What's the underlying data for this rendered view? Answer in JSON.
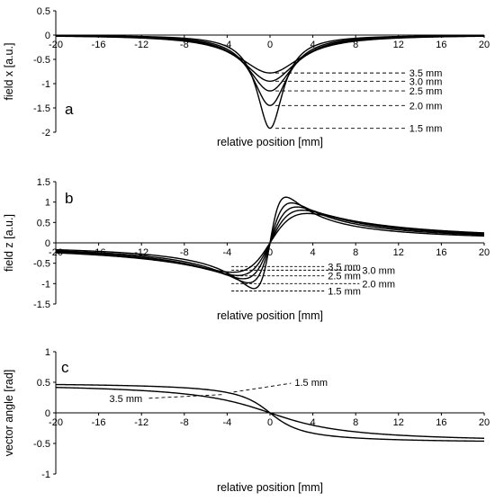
{
  "chart_data": [
    {
      "panel": "a",
      "type": "line",
      "xlabel": "relative position [mm]",
      "ylabel": "field x [a.u.]",
      "xlim": [
        -20,
        20
      ],
      "ylim": [
        -2,
        0.5
      ],
      "xticks": [
        -20,
        -16,
        -12,
        -8,
        -4,
        0,
        4,
        8,
        12,
        16,
        20
      ],
      "yticks": [
        0.5,
        0,
        -0.5,
        -1,
        -1.5,
        -2
      ],
      "series": [
        {
          "name": "3.5 mm",
          "peak": -0.78,
          "d": 3.5
        },
        {
          "name": "3.0 mm",
          "peak": -0.95,
          "d": 3.0
        },
        {
          "name": "2.5 mm",
          "peak": -1.15,
          "d": 2.5
        },
        {
          "name": "2.0 mm",
          "peak": -1.45,
          "d": 2.0
        },
        {
          "name": "1.5 mm",
          "peak": -1.92,
          "d": 1.5
        }
      ],
      "annotations": [
        {
          "text": "3.5 mm",
          "x": 13.0,
          "y": -0.78
        },
        {
          "text": "3.0 mm",
          "x": 13.0,
          "y": -0.95
        },
        {
          "text": "2.5 mm",
          "x": 13.0,
          "y": -1.15
        },
        {
          "text": "2.0 mm",
          "x": 13.0,
          "y": -1.45
        },
        {
          "text": "1.5 mm",
          "x": 13.0,
          "y": -1.92
        }
      ]
    },
    {
      "panel": "b",
      "type": "line",
      "xlabel": "relative position [mm]",
      "ylabel": "field z [a.u.]",
      "xlim": [
        -20,
        20
      ],
      "ylim": [
        -1.5,
        1.5
      ],
      "xticks": [
        -20,
        -16,
        -12,
        -8,
        -4,
        0,
        4,
        8,
        12,
        16,
        20
      ],
      "yticks": [
        1.5,
        1,
        0.5,
        0,
        -0.5,
        -1,
        -1.5
      ],
      "series": [
        {
          "name": "3.5 mm",
          "peak": 0.72,
          "d": 3.5
        },
        {
          "name": "3.0 mm",
          "peak": 0.8,
          "d": 3.0
        },
        {
          "name": "2.5 mm",
          "peak": 0.88,
          "d": 2.5
        },
        {
          "name": "2.0 mm",
          "peak": 0.98,
          "d": 2.0
        },
        {
          "name": "1.5 mm",
          "peak": 1.12,
          "d": 1.5
        }
      ],
      "annotations": [
        {
          "text": "3.5 mm",
          "x": 5.4,
          "y": -0.58
        },
        {
          "text": "3.0 mm",
          "x": 8.6,
          "y": -0.67
        },
        {
          "text": "2.5 mm",
          "x": 5.4,
          "y": -0.81
        },
        {
          "text": "2.0 mm",
          "x": 8.6,
          "y": -1.0
        },
        {
          "text": "1.5 mm",
          "x": 5.4,
          "y": -1.18
        }
      ]
    },
    {
      "panel": "c",
      "type": "line",
      "xlabel": "relative position [mm]",
      "ylabel": "vector angle [rad]",
      "xlim": [
        -20,
        20
      ],
      "ylim": [
        -1,
        1
      ],
      "xticks": [
        -20,
        -16,
        -12,
        -8,
        -4,
        0,
        4,
        8,
        12,
        16,
        20
      ],
      "yticks": [
        1,
        0.5,
        0,
        -0.5,
        -1
      ],
      "series": [
        {
          "name": "3.5 mm",
          "d": 3.5
        },
        {
          "name": "1.5 mm",
          "d": 1.5
        }
      ],
      "annotations": [
        {
          "text": "1.5 mm",
          "x": 2.3,
          "y": 0.44
        },
        {
          "text": "3.5 mm",
          "x": -15.0,
          "y": 0.18
        }
      ]
    }
  ]
}
